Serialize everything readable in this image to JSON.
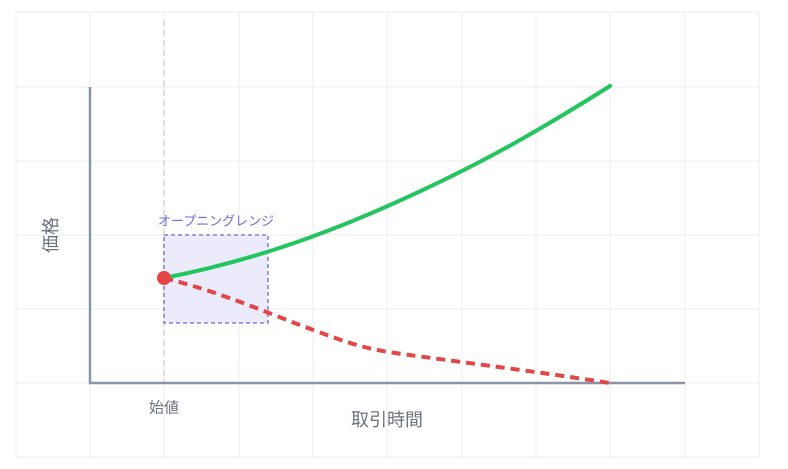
{
  "axes": {
    "y_label": "価格",
    "x_label": "取引時間",
    "start_label": "始値"
  },
  "annotations": {
    "opening_range": "オープニングレンジ"
  }
}
